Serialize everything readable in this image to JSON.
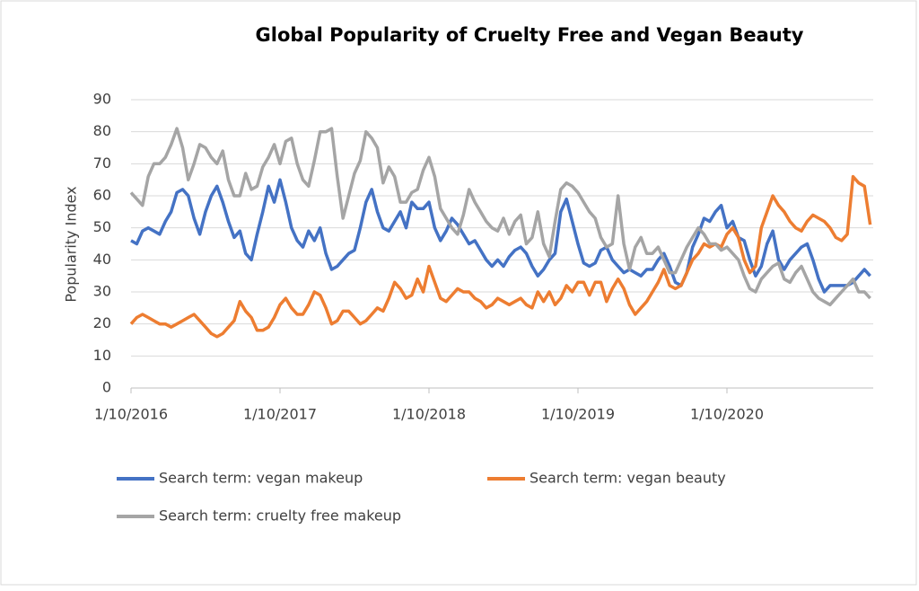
{
  "chart_data": {
    "type": "line",
    "title": "Global Popularity of Cruelty Free and Vegan Beauty",
    "y_label": "Popularity Index",
    "categories": [
      "1/10/2016",
      null,
      null,
      null,
      null,
      null,
      null,
      null,
      null,
      null,
      null,
      null,
      null,
      null,
      null,
      null,
      null,
      null,
      null,
      null,
      null,
      null,
      null,
      null,
      null,
      null,
      "1/10/2017",
      null,
      null,
      null,
      null,
      null,
      null,
      null,
      null,
      null,
      null,
      null,
      null,
      null,
      null,
      null,
      null,
      null,
      null,
      null,
      null,
      null,
      null,
      null,
      null,
      null,
      "1/10/2018",
      null,
      null,
      null,
      null,
      null,
      null,
      null,
      null,
      null,
      null,
      null,
      null,
      null,
      null,
      null,
      null,
      null,
      null,
      null,
      null,
      null,
      null,
      null,
      null,
      null,
      "1/10/2019",
      null,
      null,
      null,
      null,
      null,
      null,
      null,
      null,
      null,
      null,
      null,
      null,
      null,
      null,
      null,
      null,
      null,
      null,
      null,
      null,
      null,
      null,
      null,
      null,
      null,
      "1/10/2020",
      null,
      null,
      null,
      null,
      null,
      null,
      null,
      null,
      null,
      null,
      null,
      null,
      null,
      null,
      null,
      null,
      null,
      null,
      null,
      null,
      null,
      null,
      null,
      null,
      null
    ],
    "series": [
      {
        "name": "Search term: vegan makeup",
        "color": "#4472c4",
        "values": [
          46,
          45,
          49,
          50,
          49,
          48,
          52,
          55,
          61,
          62,
          60,
          53,
          48,
          55,
          60,
          63,
          58,
          52,
          47,
          49,
          42,
          40,
          48,
          55,
          63,
          58,
          65,
          58,
          50,
          46,
          44,
          49,
          46,
          50,
          42,
          37,
          38,
          40,
          42,
          43,
          50,
          58,
          62,
          55,
          50,
          49,
          52,
          55,
          50,
          58,
          56,
          56,
          58,
          50,
          46,
          49,
          53,
          51,
          48,
          45,
          46,
          43,
          40,
          38,
          40,
          38,
          41,
          43,
          44,
          42,
          38,
          35,
          37,
          40,
          42,
          55,
          59,
          52,
          45,
          39,
          38,
          39,
          43,
          44,
          40,
          38,
          36,
          37,
          36,
          35,
          37,
          37,
          40,
          42,
          38,
          33,
          32,
          36,
          44,
          48,
          53,
          52,
          55,
          57,
          50,
          52,
          47,
          46,
          40,
          35,
          38,
          45,
          49,
          40,
          37,
          40,
          42,
          44,
          45,
          40,
          34,
          30,
          32,
          32,
          32,
          32,
          33,
          35,
          37,
          35
        ]
      },
      {
        "name": "Search term: vegan beauty",
        "color": "#ed7d31",
        "values": [
          20,
          22,
          23,
          22,
          21,
          20,
          20,
          19,
          20,
          21,
          22,
          23,
          21,
          19,
          17,
          16,
          17,
          19,
          21,
          27,
          24,
          22,
          18,
          18,
          19,
          22,
          26,
          28,
          25,
          23,
          23,
          26,
          30,
          29,
          25,
          20,
          21,
          24,
          24,
          22,
          20,
          21,
          23,
          25,
          24,
          28,
          33,
          31,
          28,
          29,
          34,
          30,
          38,
          33,
          28,
          27,
          29,
          31,
          30,
          30,
          28,
          27,
          25,
          26,
          28,
          27,
          26,
          27,
          28,
          26,
          25,
          30,
          27,
          30,
          26,
          28,
          32,
          30,
          33,
          33,
          29,
          33,
          33,
          27,
          31,
          34,
          31,
          26,
          23,
          25,
          27,
          30,
          33,
          37,
          32,
          31,
          32,
          36,
          40,
          42,
          45,
          44,
          45,
          44,
          48,
          50,
          47,
          40,
          36,
          38,
          50,
          55,
          60,
          57,
          55,
          52,
          50,
          49,
          52,
          54,
          53,
          52,
          50,
          47,
          46,
          48,
          66,
          64,
          63,
          51
        ]
      },
      {
        "name": "Search term: cruelty free makeup",
        "color": "#a5a5a5",
        "values": [
          61,
          59,
          57,
          66,
          70,
          70,
          72,
          76,
          81,
          75,
          65,
          70,
          76,
          75,
          72,
          70,
          74,
          65,
          60,
          60,
          67,
          62,
          63,
          69,
          72,
          76,
          70,
          77,
          78,
          70,
          65,
          63,
          71,
          80,
          80,
          81,
          66,
          53,
          60,
          67,
          71,
          80,
          78,
          75,
          64,
          69,
          66,
          58,
          58,
          61,
          62,
          68,
          72,
          66,
          56,
          53,
          50,
          48,
          54,
          62,
          58,
          55,
          52,
          50,
          49,
          53,
          48,
          52,
          54,
          45,
          47,
          55,
          45,
          41,
          52,
          62,
          64,
          63,
          61,
          58,
          55,
          53,
          47,
          44,
          45,
          60,
          45,
          37,
          44,
          47,
          42,
          42,
          44,
          40,
          36,
          36,
          40,
          44,
          47,
          50,
          48,
          45,
          45,
          43,
          44,
          42,
          40,
          35,
          31,
          30,
          34,
          36,
          38,
          39,
          34,
          33,
          36,
          38,
          34,
          30,
          28,
          27,
          26,
          28,
          30,
          32,
          34,
          30,
          30,
          28
        ]
      }
    ],
    "ylim": [
      0,
      90
    ],
    "yticks": [
      0,
      10,
      20,
      30,
      40,
      50,
      60,
      70,
      80,
      90
    ],
    "grid": true
  }
}
